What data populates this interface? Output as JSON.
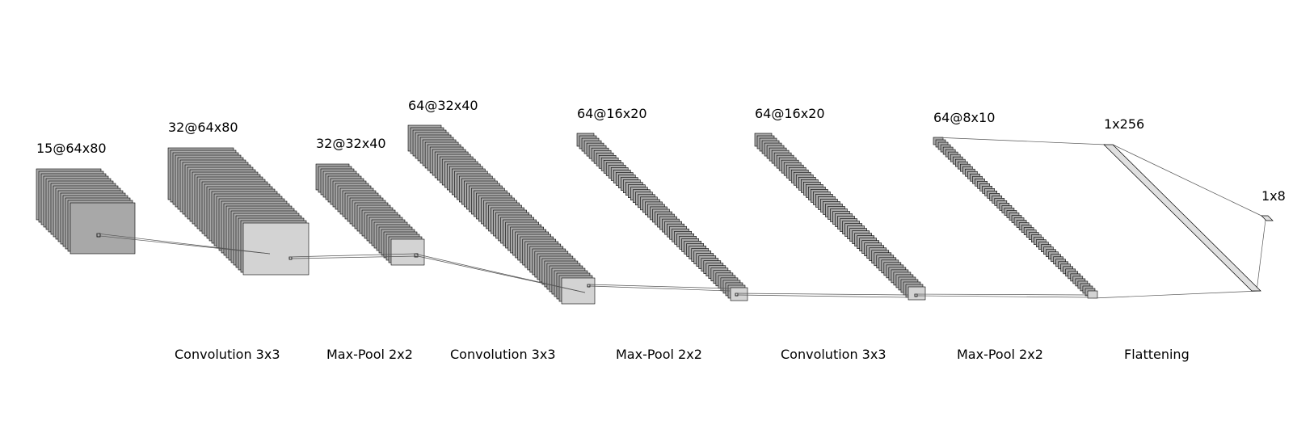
{
  "layers": [
    {
      "label": "15@64x80",
      "count": 15,
      "fill_back": "#a8a8a8",
      "fill_front": "#a8a8a8"
    },
    {
      "label": "32@64x80",
      "count": 32,
      "fill_back": "#a8a8a8",
      "fill_front": "#d3d3d3"
    },
    {
      "label": "32@32x40",
      "count": 32,
      "fill_back": "#a8a8a8",
      "fill_front": "#d3d3d3"
    },
    {
      "label": "64@32x40",
      "count": 64,
      "fill_back": "#a8a8a8",
      "fill_front": "#d3d3d3"
    },
    {
      "label": "64@16x20",
      "count": 64,
      "fill_back": "#a8a8a8",
      "fill_front": "#d3d3d3"
    },
    {
      "label": "64@16x20",
      "count": 64,
      "fill_back": "#a8a8a8",
      "fill_front": "#d3d3d3"
    },
    {
      "label": "64@8x10",
      "count": 64,
      "fill_back": "#a8a8a8",
      "fill_front": "#d3d3d3"
    }
  ],
  "dense": [
    {
      "label": "1x256"
    },
    {
      "label": "1x8"
    }
  ],
  "operations": [
    {
      "label": "Convolution 3x3"
    },
    {
      "label": "Max-Pool 2x2"
    },
    {
      "label": "Convolution 3x3"
    },
    {
      "label": "Max-Pool 2x2"
    },
    {
      "label": "Convolution 3x3"
    },
    {
      "label": "Max-Pool 2x2"
    },
    {
      "label": "Flattening"
    }
  ],
  "colors": {
    "stroke": "#000000",
    "connector": "#555555",
    "dense_fill": "#e0e0e0"
  }
}
